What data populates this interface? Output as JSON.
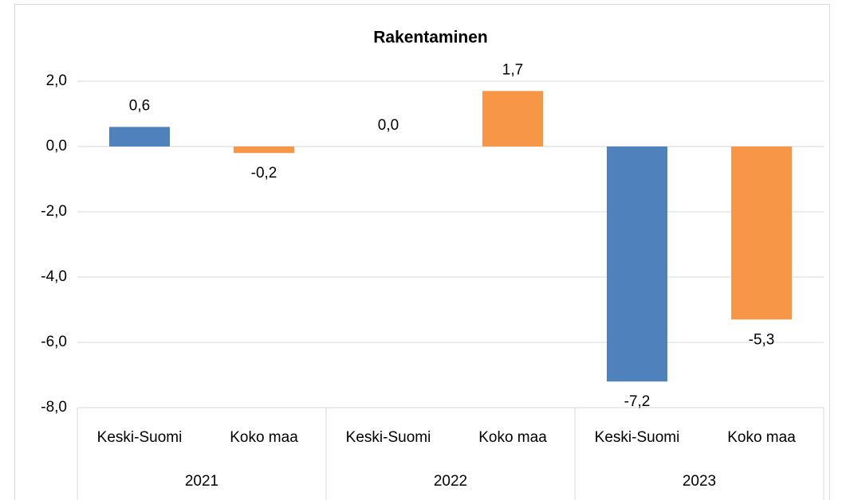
{
  "chart_data": {
    "type": "bar",
    "title": "Rakentaminen",
    "categories": [
      "2021",
      "2022",
      "2023"
    ],
    "series": [
      {
        "name": "Keski-Suomi",
        "color": "#4f81bd",
        "values": [
          0.6,
          0.0,
          -7.2
        ],
        "value_labels": [
          "0,6",
          "0,0",
          "-7,2"
        ]
      },
      {
        "name": "Koko maa",
        "color": "#f79646",
        "values": [
          -0.2,
          1.7,
          -5.3
        ],
        "value_labels": [
          "-0,2",
          "1,7",
          "-5,3"
        ]
      }
    ],
    "ylim": [
      -8,
      2
    ],
    "yticks": [
      {
        "value": -8,
        "label": "-8,0"
      },
      {
        "value": -6,
        "label": "-6,0"
      },
      {
        "value": -4,
        "label": "-4,0"
      },
      {
        "value": -2,
        "label": "-2,0"
      },
      {
        "value": 0,
        "label": "0,0"
      },
      {
        "value": 2,
        "label": "2,0"
      }
    ],
    "grid": true
  }
}
